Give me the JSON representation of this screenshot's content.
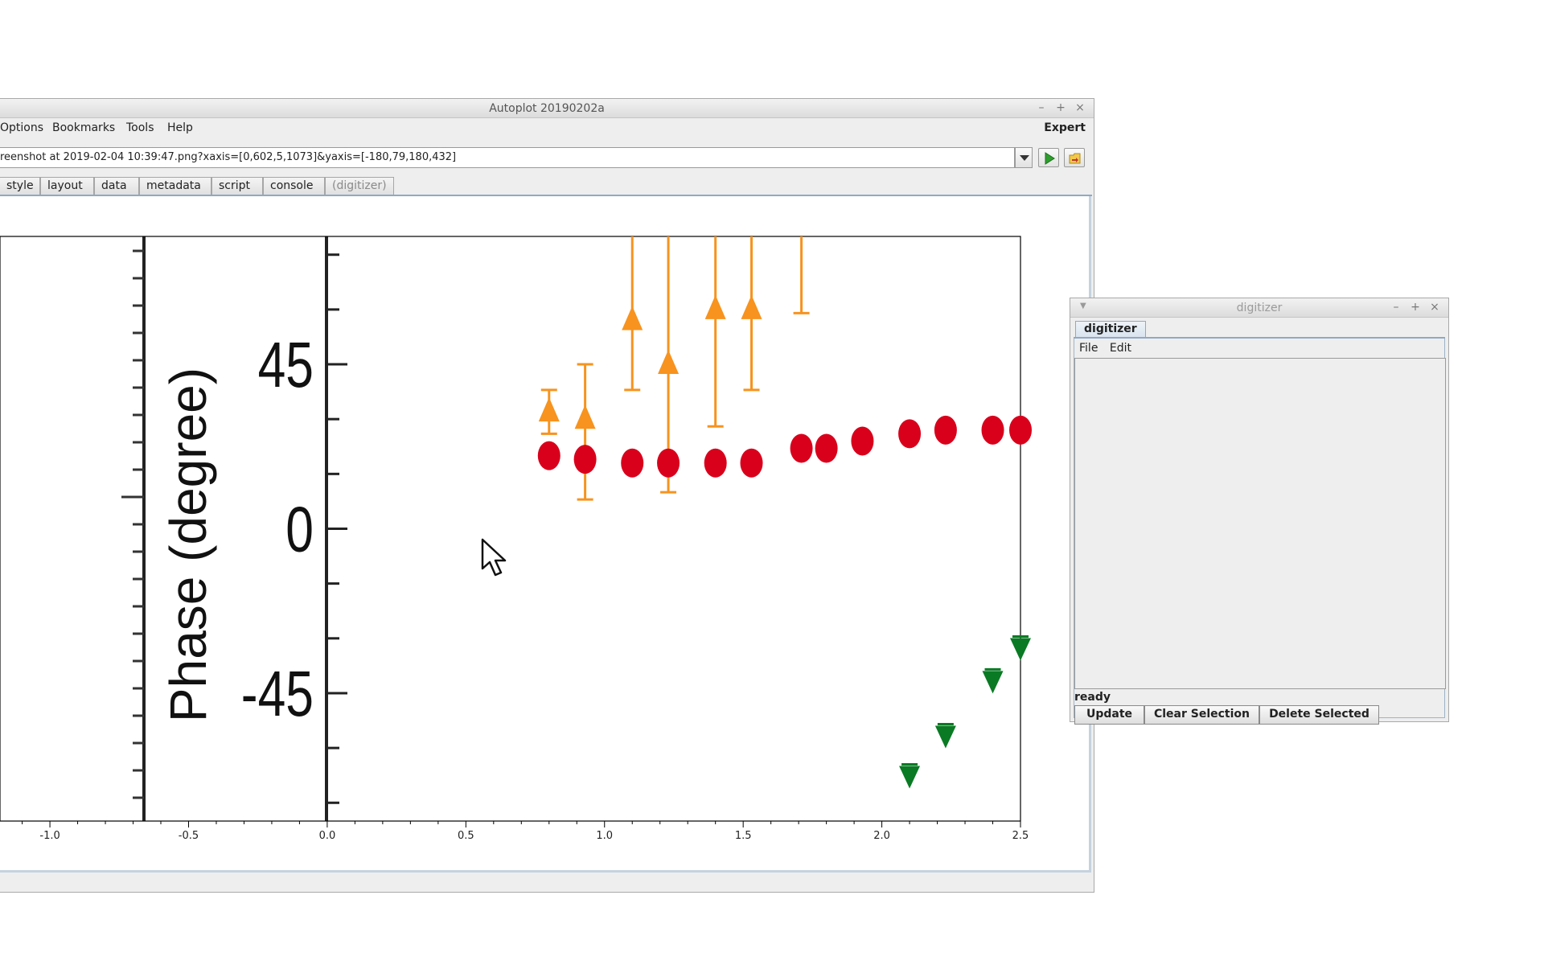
{
  "main_window": {
    "title": "Autoplot 20190202a",
    "controls": [
      "–",
      "+",
      "×"
    ],
    "menu": [
      "Options",
      "Bookmarks",
      "Tools",
      "Help"
    ],
    "expert_label": "Expert",
    "uri_value": "reenshot at 2019-02-04 10:39:47.png?xaxis=[0,602,5,1073]&yaxis=[-180,79,180,432]",
    "tabs": [
      "style",
      "layout",
      "data",
      "metadata",
      "script",
      "console",
      "(digitizer)"
    ]
  },
  "plot": {
    "ylabel": "Phase (degree)",
    "y_ticks": [
      "45",
      "0",
      "-45"
    ],
    "x_ticks": [
      "-1.0",
      "-0.5",
      "0.0",
      "0.5",
      "1.0",
      "1.5",
      "2.0",
      "2.5"
    ],
    "colors": {
      "orange": "#f7931e",
      "red": "#d9001b",
      "green": "#0a7a24"
    }
  },
  "chart_data": {
    "type": "scatter",
    "xlim": [
      -1.18,
      2.5
    ],
    "ylim": [
      -80,
      80
    ],
    "series": [
      {
        "x": [
          0.8,
          0.93,
          1.1,
          1.23,
          1.4,
          1.53
        ],
        "y": [
          32,
          30,
          57,
          45,
          60,
          60
        ],
        "yerr_low": [
          26,
          8,
          38,
          10,
          28,
          38
        ],
        "yerr_high": [
          38,
          45,
          80,
          80,
          80,
          80
        ]
      },
      {
        "x": [
          1.71
        ],
        "y": [
          null
        ],
        "yerr_low": [
          59
        ],
        "yerr_high": [
          80
        ]
      },
      {
        "x": [
          0.8,
          0.93,
          1.1,
          1.23,
          1.4,
          1.53,
          1.71,
          1.8,
          1.93,
          2.1,
          2.23,
          2.4,
          2.5
        ],
        "y": [
          20,
          19,
          18,
          18,
          18,
          18,
          22,
          22,
          24,
          26,
          27,
          27,
          27
        ]
      },
      {
        "x": [
          2.1,
          2.23,
          2.4,
          2.5
        ],
        "y": [
          -68,
          -57,
          -42,
          -33
        ]
      }
    ]
  },
  "digitizer": {
    "title": "digitizer",
    "tab": "digitizer",
    "menu": [
      "File",
      "Edit"
    ],
    "status": "ready",
    "buttons": [
      "Update",
      "Clear Selection",
      "Delete Selected"
    ]
  }
}
